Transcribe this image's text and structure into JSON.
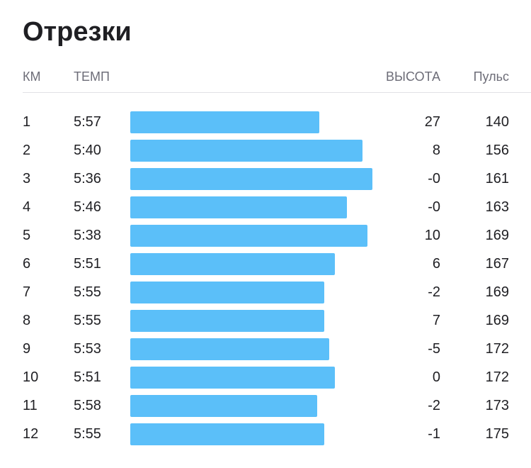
{
  "header": {
    "title": "Отрезки"
  },
  "columns": {
    "km": "КМ",
    "pace": "ТЕМП",
    "elevation": "ВЫСОТА",
    "hr": "Пульс"
  },
  "colors": {
    "bar": "#5bbff9",
    "divider": "#e1e1e6",
    "header_text": "#6d6d78",
    "text": "#1f1f23"
  },
  "chart_data": {
    "type": "bar",
    "orientation": "horizontal",
    "categories": [
      "1",
      "2",
      "3",
      "4",
      "5",
      "6",
      "7",
      "8",
      "9",
      "10",
      "11",
      "12"
    ],
    "series": [
      {
        "name": "ТЕМП",
        "values": [
          "5:57",
          "5:40",
          "5:36",
          "5:46",
          "5:38",
          "5:51",
          "5:55",
          "5:55",
          "5:53",
          "5:51",
          "5:58",
          "5:55"
        ]
      },
      {
        "name": "ВЫСОТА",
        "values": [
          "27",
          "8",
          "-0",
          "-0",
          "10",
          "6",
          "-2",
          "7",
          "-5",
          "0",
          "-2",
          "-1"
        ]
      },
      {
        "name": "Пульс",
        "values": [
          "140",
          "156",
          "161",
          "163",
          "169",
          "167",
          "169",
          "169",
          "172",
          "172",
          "173",
          "175"
        ]
      }
    ],
    "bar_scale": {
      "slowest": "7:12",
      "fastest": "5:36"
    }
  }
}
